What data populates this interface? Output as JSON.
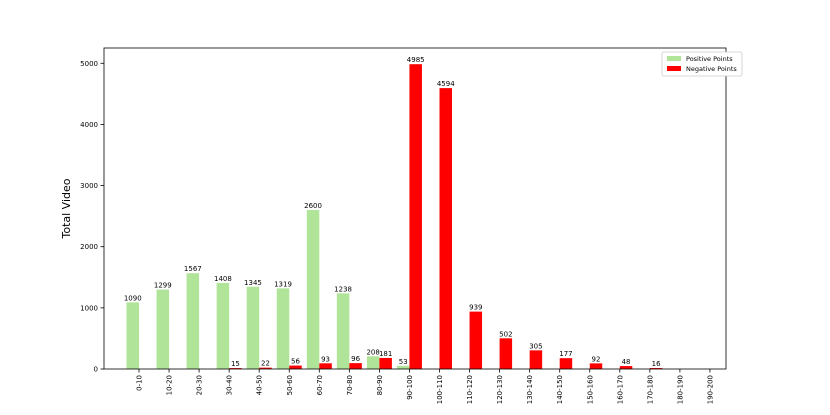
{
  "chart_data": {
    "type": "bar",
    "title": "",
    "xlabel": "",
    "ylabel": "Total Video",
    "ylim": [
      0,
      5250
    ],
    "yticks": [
      0,
      1000,
      2000,
      3000,
      4000,
      5000
    ],
    "grid": false,
    "legend_position": "top-right",
    "categories": [
      "0-10",
      "10-20",
      "20-30",
      "30-40",
      "40-50",
      "50-60",
      "60-70",
      "70-80",
      "80-90",
      "90-100",
      "100-110",
      "110-120",
      "120-130",
      "130-140",
      "140-150",
      "150-160",
      "160-170",
      "170-180",
      "180-190",
      "190-200"
    ],
    "series": [
      {
        "name": "Positive Points",
        "color": "#b0e599",
        "values": [
          1090,
          1299,
          1567,
          1408,
          1345,
          1319,
          2600,
          1238,
          208,
          53,
          null,
          null,
          null,
          null,
          null,
          null,
          null,
          null,
          null,
          null
        ]
      },
      {
        "name": "Negative Points",
        "color": "#ff0000",
        "values": [
          null,
          null,
          null,
          15,
          22,
          56,
          93,
          96,
          181,
          4985,
          4594,
          939,
          502,
          305,
          177,
          92,
          48,
          16,
          null,
          null
        ]
      }
    ]
  }
}
